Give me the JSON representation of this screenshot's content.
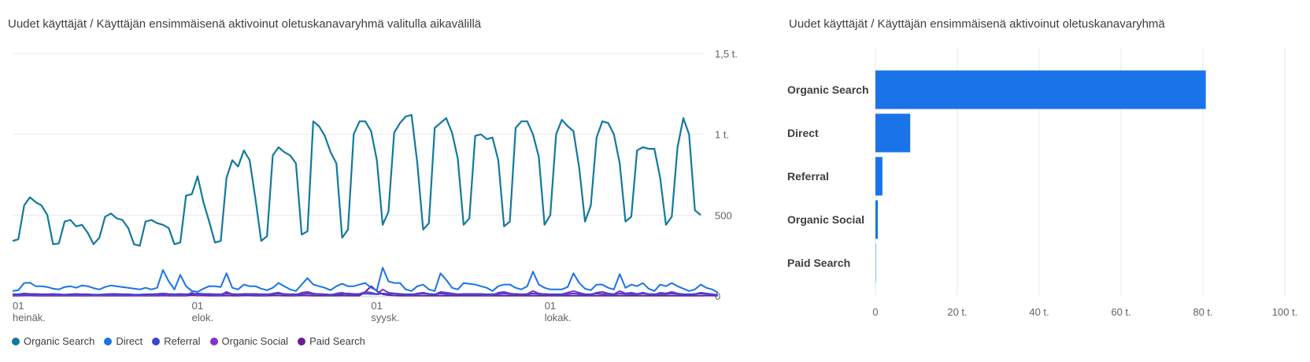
{
  "chart_data": [
    {
      "type": "line",
      "title": "Uudet käyttäjät / Käyttäjän ensimmäisenä aktivoinut oletuskanavaryhmä valitulla aikavälillä",
      "y_ticks": [
        "1,5 t.",
        "1 t.",
        "500",
        "0"
      ],
      "y_tick_values": [
        1500,
        1000,
        500,
        0
      ],
      "ylim": [
        0,
        1500
      ],
      "x_ticks": [
        {
          "day": "01",
          "month": "heinäk.",
          "index": 0
        },
        {
          "day": "01",
          "month": "elok.",
          "index": 31
        },
        {
          "day": "01",
          "month": "syysk.",
          "index": 62
        },
        {
          "day": "01",
          "month": "lokak.",
          "index": 92
        }
      ],
      "grid": true,
      "legend_position": "bottom-left",
      "series": [
        {
          "name": "Organic Search",
          "color": "#12799f",
          "values": [
            340,
            350,
            560,
            610,
            580,
            560,
            500,
            320,
            325,
            460,
            470,
            430,
            440,
            390,
            320,
            360,
            490,
            510,
            480,
            470,
            420,
            320,
            310,
            460,
            470,
            450,
            440,
            420,
            320,
            330,
            620,
            630,
            740,
            580,
            460,
            330,
            340,
            730,
            840,
            800,
            900,
            840,
            600,
            340,
            370,
            870,
            920,
            890,
            870,
            820,
            380,
            400,
            1080,
            1050,
            990,
            890,
            820,
            360,
            410,
            1000,
            1080,
            1080,
            1020,
            840,
            440,
            520,
            1010,
            1070,
            1110,
            1120,
            820,
            410,
            450,
            1040,
            1070,
            1100,
            1010,
            850,
            440,
            480,
            990,
            1000,
            970,
            980,
            840,
            430,
            460,
            1040,
            1080,
            1080,
            1000,
            860,
            440,
            500,
            1000,
            1090,
            1050,
            1020,
            790,
            460,
            560,
            980,
            1080,
            1070,
            1000,
            820,
            460,
            490,
            900,
            920,
            910,
            910,
            730,
            440,
            490,
            920,
            1100,
            1000,
            530,
            500
          ]
        },
        {
          "name": "Direct",
          "color": "#1a73e8",
          "values": [
            30,
            35,
            80,
            82,
            60,
            60,
            55,
            45,
            40,
            55,
            60,
            50,
            65,
            60,
            48,
            40,
            55,
            65,
            60,
            55,
            50,
            45,
            40,
            50,
            40,
            50,
            160,
            90,
            40,
            130,
            60,
            30,
            25,
            45,
            60,
            60,
            55,
            140,
            50,
            40,
            70,
            60,
            60,
            45,
            35,
            50,
            80,
            60,
            40,
            30,
            70,
            110,
            70,
            60,
            50,
            35,
            60,
            75,
            60,
            60,
            70,
            80,
            50,
            35,
            175,
            90,
            80,
            80,
            40,
            30,
            60,
            70,
            40,
            30,
            140,
            100,
            50,
            40,
            80,
            75,
            70,
            60,
            50,
            30,
            60,
            70,
            70,
            50,
            40,
            60,
            150,
            70,
            50,
            40,
            40,
            40,
            55,
            140,
            80,
            45,
            35,
            70,
            70,
            50,
            40,
            135,
            50,
            70,
            60,
            80,
            45,
            30,
            70,
            60,
            80,
            60,
            45,
            30,
            40,
            70,
            50,
            40,
            20
          ]
        },
        {
          "name": "Referral",
          "color": "#3848cc",
          "values": [
            10,
            10,
            15,
            12,
            12,
            10,
            10,
            12,
            10,
            8,
            10,
            12,
            10,
            10,
            8,
            8,
            10,
            12,
            12,
            10,
            10,
            8,
            8,
            10,
            10,
            12,
            15,
            12,
            10,
            12,
            10,
            10,
            15,
            12,
            12,
            10,
            10,
            15,
            12,
            10,
            12,
            12,
            12,
            10,
            10,
            12,
            15,
            12,
            10,
            10,
            12,
            15,
            12,
            12,
            10,
            8,
            10,
            12,
            15,
            12,
            12,
            14,
            12,
            10,
            15,
            12,
            15,
            12,
            10,
            10,
            12,
            15,
            12,
            10,
            15,
            12,
            12,
            10,
            12,
            12,
            12,
            12,
            10,
            10,
            12,
            15,
            12,
            12,
            10,
            10,
            15,
            12,
            12,
            10,
            10,
            10,
            12,
            15,
            12,
            10,
            10,
            15,
            12,
            12,
            10,
            15,
            12,
            12,
            12,
            15,
            12,
            10,
            12,
            12,
            15,
            12,
            10,
            10,
            12,
            15,
            12,
            10,
            5
          ]
        },
        {
          "name": "Organic Social",
          "color": "#8430ce",
          "values": [
            5,
            5,
            8,
            8,
            6,
            5,
            5,
            6,
            5,
            5,
            5,
            6,
            5,
            5,
            4,
            4,
            5,
            6,
            6,
            5,
            5,
            4,
            4,
            5,
            5,
            6,
            8,
            6,
            5,
            6,
            5,
            20,
            5,
            10,
            8,
            6,
            5,
            25,
            10,
            6,
            12,
            10,
            8,
            6,
            5,
            15,
            20,
            10,
            6,
            5,
            20,
            25,
            15,
            10,
            8,
            5,
            15,
            20,
            10,
            8,
            12,
            25,
            20,
            10,
            40,
            20,
            15,
            10,
            8,
            6,
            15,
            20,
            12,
            8,
            25,
            20,
            15,
            10,
            8,
            10,
            12,
            8,
            6,
            5,
            20,
            25,
            15,
            10,
            8,
            12,
            30,
            15,
            10,
            8,
            8,
            10,
            20,
            30,
            20,
            10,
            8,
            20,
            25,
            15,
            10,
            30,
            15,
            20,
            12,
            20,
            10,
            8,
            20,
            15,
            25,
            15,
            10,
            8,
            10,
            20,
            15,
            10,
            2
          ]
        },
        {
          "name": "Paid Search",
          "color": "#6c1b9e",
          "values": [
            2,
            2,
            3,
            3,
            2,
            2,
            2,
            2,
            2,
            2,
            2,
            2,
            2,
            2,
            2,
            2,
            2,
            2,
            2,
            2,
            2,
            2,
            2,
            2,
            2,
            2,
            3,
            2,
            2,
            2,
            2,
            5,
            3,
            3,
            2,
            2,
            2,
            3,
            2,
            2,
            3,
            3,
            2,
            2,
            2,
            3,
            3,
            2,
            2,
            2,
            3,
            3,
            2,
            2,
            2,
            2,
            2,
            3,
            2,
            2,
            2,
            25,
            60,
            30,
            10,
            5,
            3,
            2,
            2,
            2,
            2,
            2,
            2,
            2,
            2,
            2,
            2,
            2,
            2,
            2,
            2,
            2,
            2,
            2,
            2,
            2,
            2,
            2,
            2,
            2,
            2,
            2,
            2,
            2,
            2,
            2,
            2,
            2,
            2,
            2,
            2,
            2,
            2,
            2,
            2,
            2,
            2,
            2,
            2,
            2,
            2,
            2,
            2,
            2,
            2,
            2,
            2,
            2,
            2,
            2,
            2,
            2,
            1
          ]
        }
      ]
    },
    {
      "type": "bar",
      "orientation": "horizontal",
      "title": "Uudet käyttäjät / Käyttäjän ensimmäisenä aktivoinut oletuskanavaryhmä",
      "categories": [
        "Organic Search",
        "Direct",
        "Referral",
        "Organic Social",
        "Paid Search"
      ],
      "values": [
        80700,
        8500,
        1700,
        600,
        50
      ],
      "x_ticks": [
        "0",
        "20 t.",
        "40 t.",
        "60 t.",
        "80 t.",
        "100 t."
      ],
      "x_tick_values": [
        0,
        20000,
        40000,
        60000,
        80000,
        100000
      ],
      "xlim": [
        0,
        100000
      ],
      "bar_color": "#1a73e8",
      "grid": true
    }
  ]
}
